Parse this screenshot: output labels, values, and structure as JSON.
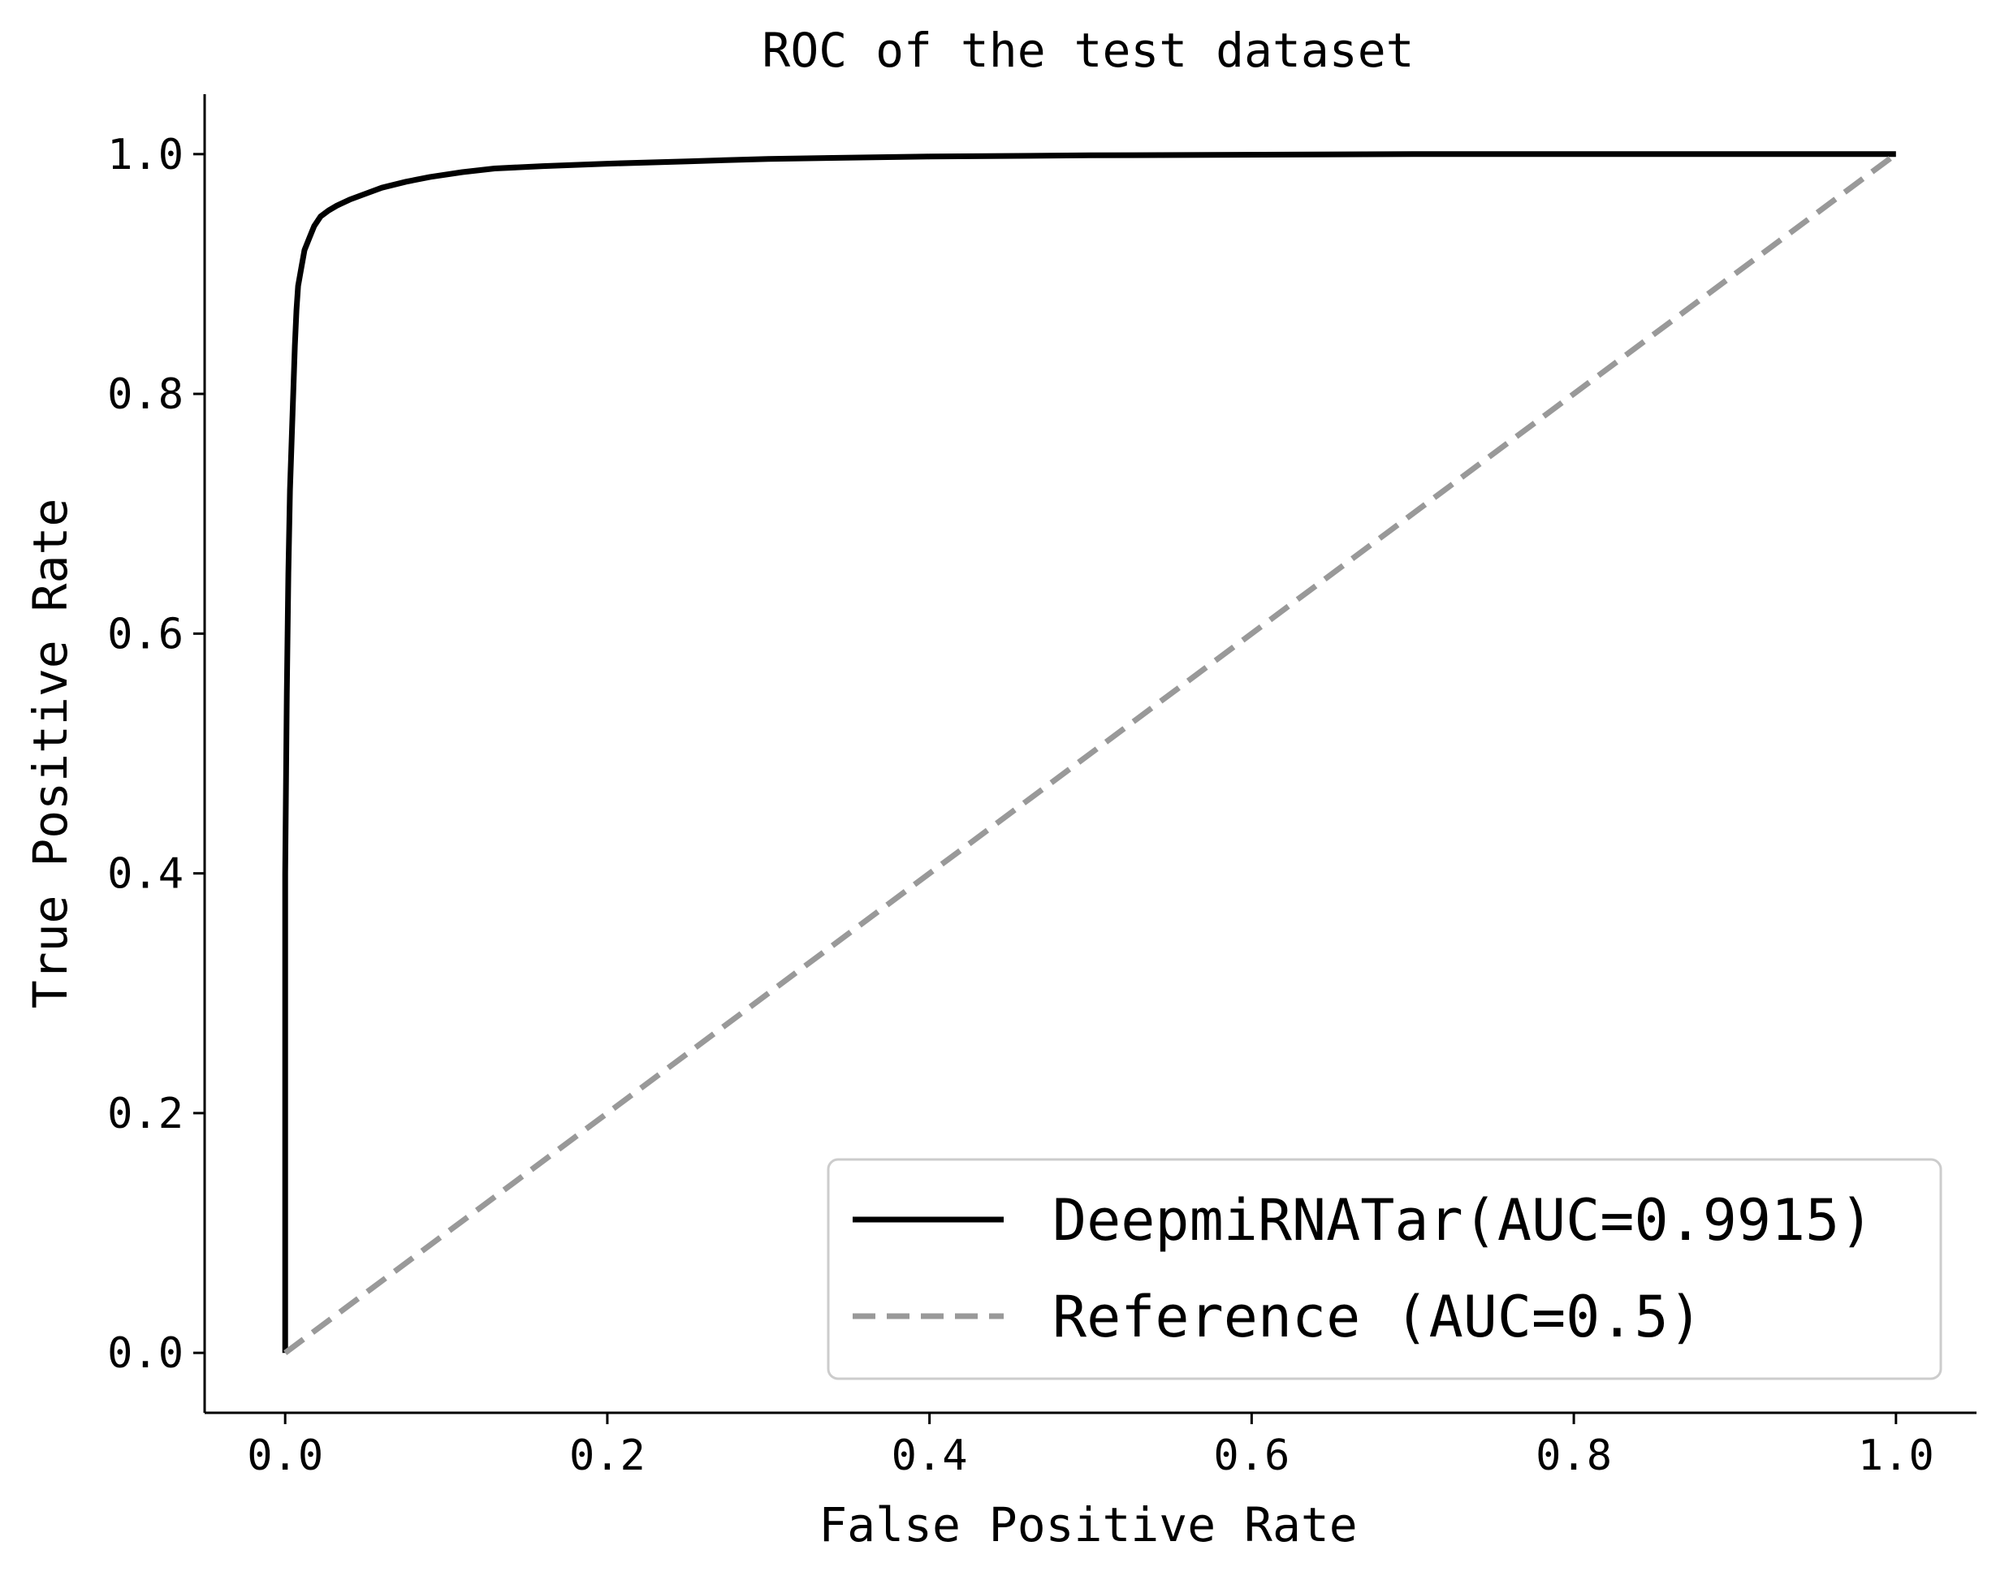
{
  "chart_data": {
    "type": "line",
    "title": "ROC of the test dataset",
    "xlabel": "False Positive Rate",
    "ylabel": "True Positive Rate",
    "xlim": [
      -0.05,
      1.05
    ],
    "ylim": [
      -0.05,
      1.05
    ],
    "xticks": [
      "0.0",
      "0.2",
      "0.4",
      "0.6",
      "0.8",
      "1.0"
    ],
    "yticks": [
      "0.0",
      "0.2",
      "0.4",
      "0.6",
      "0.8",
      "1.0"
    ],
    "grid": false,
    "legend_position": "lower-right",
    "series": [
      {
        "name": "DeepmiRNATar(AUC=0.9915)",
        "color": "#000000",
        "style": "solid",
        "x": [
          0.0,
          0.0,
          0.001,
          0.002,
          0.003,
          0.004,
          0.005,
          0.006,
          0.007,
          0.008,
          0.01,
          0.012,
          0.015,
          0.018,
          0.022,
          0.027,
          0.032,
          0.04,
          0.05,
          0.06,
          0.075,
          0.09,
          0.11,
          0.13,
          0.16,
          0.2,
          0.25,
          0.3,
          0.4,
          0.5,
          0.7,
          1.0
        ],
        "y": [
          0.0,
          0.4,
          0.55,
          0.65,
          0.72,
          0.76,
          0.8,
          0.84,
          0.87,
          0.89,
          0.905,
          0.92,
          0.93,
          0.94,
          0.948,
          0.953,
          0.957,
          0.962,
          0.967,
          0.972,
          0.977,
          0.981,
          0.985,
          0.988,
          0.99,
          0.992,
          0.994,
          0.996,
          0.998,
          0.999,
          1.0,
          1.0
        ]
      },
      {
        "name": "Reference (AUC=0.5)",
        "color": "#999999",
        "style": "dashed",
        "x": [
          0.0,
          1.0
        ],
        "y": [
          0.0,
          1.0
        ]
      }
    ]
  }
}
